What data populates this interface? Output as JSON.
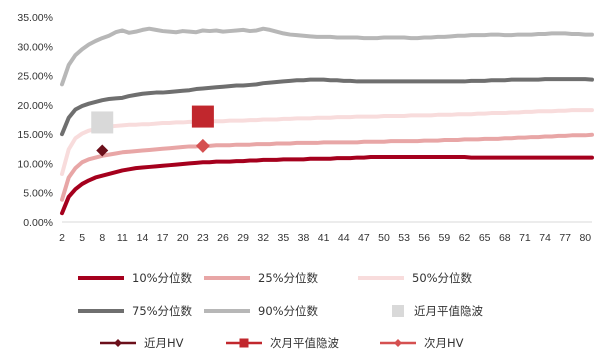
{
  "chart_data": {
    "type": "line",
    "x": [
      2,
      3,
      4,
      5,
      6,
      7,
      8,
      9,
      10,
      11,
      12,
      13,
      14,
      15,
      16,
      17,
      18,
      19,
      20,
      21,
      22,
      23,
      24,
      25,
      26,
      27,
      28,
      29,
      30,
      31,
      32,
      33,
      34,
      35,
      36,
      37,
      38,
      39,
      40,
      41,
      42,
      43,
      44,
      45,
      46,
      47,
      48,
      49,
      50,
      51,
      52,
      53,
      54,
      55,
      56,
      57,
      58,
      59,
      60,
      61,
      62,
      63,
      64,
      65,
      66,
      67,
      68,
      69,
      70,
      71,
      72,
      73,
      74,
      75,
      76,
      77,
      78,
      79,
      80,
      81
    ],
    "x_tick_labels": [
      "2",
      "5",
      "8",
      "11",
      "14",
      "17",
      "20",
      "23",
      "26",
      "29",
      "32",
      "35",
      "38",
      "41",
      "44",
      "47",
      "50",
      "53",
      "56",
      "59",
      "62",
      "65",
      "68",
      "71",
      "74",
      "77",
      "80"
    ],
    "ylim": [
      0,
      35
    ],
    "y_ticks": [
      0,
      5,
      10,
      15,
      20,
      25,
      30,
      35
    ],
    "y_tick_labels": [
      "0.00%",
      "5.00%",
      "10.00%",
      "15.00%",
      "20.00%",
      "25.00%",
      "30.00%",
      "35.00%"
    ],
    "series": [
      {
        "name": "10%分位数",
        "color": "#a5001d",
        "width": 4,
        "values": [
          1.5,
          4.3,
          5.6,
          6.5,
          7.1,
          7.6,
          7.9,
          8.2,
          8.5,
          8.8,
          9.0,
          9.2,
          9.3,
          9.4,
          9.5,
          9.6,
          9.7,
          9.8,
          9.9,
          10.0,
          10.1,
          10.2,
          10.2,
          10.3,
          10.3,
          10.3,
          10.4,
          10.4,
          10.5,
          10.5,
          10.6,
          10.6,
          10.6,
          10.7,
          10.7,
          10.7,
          10.7,
          10.8,
          10.8,
          10.8,
          10.8,
          10.9,
          10.9,
          10.9,
          11.0,
          11.0,
          11.1,
          11.1,
          11.1,
          11.1,
          11.1,
          11.1,
          11.1,
          11.1,
          11.1,
          11.1,
          11.1,
          11.1,
          11.1,
          11.1,
          11.1,
          11.0,
          11.0,
          11.0,
          11.0,
          11.0,
          11.0,
          11.0,
          11.0,
          11.0,
          11.0,
          11.0,
          11.0,
          11.0,
          11.0,
          11.0,
          11.0,
          11.0,
          11.0,
          11.0
        ]
      },
      {
        "name": "25%分位数",
        "color": "#e8a6a6",
        "width": 4,
        "values": [
          3.8,
          7.6,
          9.2,
          10.2,
          10.7,
          11.0,
          11.3,
          11.5,
          11.7,
          11.9,
          12.0,
          12.1,
          12.2,
          12.3,
          12.4,
          12.5,
          12.6,
          12.7,
          12.8,
          12.9,
          12.9,
          13.0,
          13.0,
          13.1,
          13.1,
          13.1,
          13.2,
          13.2,
          13.2,
          13.3,
          13.3,
          13.3,
          13.4,
          13.4,
          13.4,
          13.5,
          13.5,
          13.5,
          13.5,
          13.6,
          13.6,
          13.6,
          13.6,
          13.6,
          13.6,
          13.7,
          13.7,
          13.7,
          13.7,
          13.8,
          13.8,
          13.8,
          13.8,
          13.8,
          13.9,
          13.9,
          13.9,
          14.0,
          14.0,
          14.0,
          14.1,
          14.1,
          14.1,
          14.2,
          14.2,
          14.2,
          14.3,
          14.3,
          14.4,
          14.4,
          14.5,
          14.5,
          14.6,
          14.6,
          14.7,
          14.7,
          14.8,
          14.8,
          14.8,
          14.9
        ]
      },
      {
        "name": "50%分位数",
        "color": "#f8dcdc",
        "width": 4,
        "values": [
          8.2,
          12.4,
          14.3,
          15.1,
          15.6,
          15.9,
          16.1,
          16.3,
          16.4,
          16.5,
          16.6,
          16.6,
          16.7,
          16.7,
          16.8,
          16.9,
          16.9,
          17.0,
          17.0,
          17.1,
          17.1,
          17.1,
          17.2,
          17.2,
          17.2,
          17.3,
          17.3,
          17.3,
          17.4,
          17.4,
          17.5,
          17.5,
          17.5,
          17.6,
          17.6,
          17.7,
          17.7,
          17.7,
          17.8,
          17.8,
          17.8,
          17.9,
          17.9,
          17.9,
          18.0,
          18.0,
          18.0,
          18.0,
          18.1,
          18.1,
          18.1,
          18.1,
          18.2,
          18.2,
          18.2,
          18.2,
          18.3,
          18.3,
          18.3,
          18.4,
          18.4,
          18.4,
          18.5,
          18.5,
          18.6,
          18.6,
          18.6,
          18.7,
          18.7,
          18.8,
          18.8,
          18.9,
          18.9,
          18.9,
          19.0,
          19.0,
          19.1,
          19.1,
          19.1,
          19.1
        ]
      },
      {
        "name": "75%分位数",
        "color": "#6f6f6f",
        "width": 4,
        "values": [
          15.0,
          17.8,
          19.2,
          19.8,
          20.2,
          20.5,
          20.8,
          21.0,
          21.1,
          21.2,
          21.5,
          21.7,
          21.9,
          22.0,
          22.1,
          22.1,
          22.2,
          22.3,
          22.4,
          22.5,
          22.7,
          22.8,
          22.9,
          23.0,
          23.1,
          23.2,
          23.3,
          23.3,
          23.4,
          23.5,
          23.7,
          23.8,
          23.9,
          24.0,
          24.1,
          24.2,
          24.2,
          24.3,
          24.3,
          24.3,
          24.2,
          24.2,
          24.1,
          24.1,
          24.0,
          24.0,
          24.0,
          24.0,
          24.0,
          24.0,
          24.0,
          24.0,
          24.0,
          24.0,
          24.0,
          24.0,
          24.0,
          24.0,
          24.0,
          24.0,
          24.0,
          24.1,
          24.1,
          24.1,
          24.2,
          24.2,
          24.2,
          24.3,
          24.3,
          24.3,
          24.3,
          24.3,
          24.4,
          24.4,
          24.4,
          24.4,
          24.4,
          24.4,
          24.4,
          24.3
        ]
      },
      {
        "name": "90%分位数",
        "color": "#b7b7b7",
        "width": 4,
        "values": [
          23.5,
          26.8,
          28.5,
          29.5,
          30.3,
          30.9,
          31.4,
          31.8,
          32.4,
          32.7,
          32.3,
          32.5,
          32.8,
          33.0,
          32.8,
          32.6,
          32.5,
          32.4,
          32.6,
          32.5,
          32.4,
          32.7,
          32.6,
          32.7,
          32.5,
          32.6,
          32.7,
          32.8,
          32.6,
          32.7,
          33.0,
          32.8,
          32.5,
          32.2,
          32.0,
          31.9,
          31.8,
          31.7,
          31.6,
          31.6,
          31.6,
          31.5,
          31.5,
          31.5,
          31.5,
          31.4,
          31.4,
          31.4,
          31.5,
          31.5,
          31.5,
          31.5,
          31.4,
          31.4,
          31.5,
          31.5,
          31.6,
          31.6,
          31.7,
          31.8,
          31.8,
          31.9,
          31.9,
          31.9,
          32.0,
          32.0,
          31.9,
          31.9,
          32.0,
          32.0,
          32.0,
          32.1,
          32.1,
          32.2,
          32.2,
          32.2,
          32.1,
          32.1,
          32.0,
          32.0
        ]
      }
    ],
    "points": [
      {
        "name": "近月平值隐波",
        "x": 8,
        "y": 17.0,
        "color": "#d9d9d9",
        "marker": "square",
        "size": 22
      },
      {
        "name": "近月HV",
        "x": 8,
        "y": 12.2,
        "color": "#6b0f1a",
        "marker": "diamond",
        "size": 12
      },
      {
        "name": "次月平值隐波",
        "x": 23,
        "y": 18.0,
        "color": "#c1272d",
        "marker": "square",
        "size": 22
      },
      {
        "name": "次月HV",
        "x": 23,
        "y": 13.0,
        "color": "#d55050",
        "marker": "diamond",
        "size": 14
      }
    ],
    "legend": [
      {
        "label": "10%分位数",
        "type": "line",
        "color": "#a5001d"
      },
      {
        "label": "25%分位数",
        "type": "line",
        "color": "#e8a6a6"
      },
      {
        "label": "50%分位数",
        "type": "line",
        "color": "#f8dcdc"
      },
      {
        "label": "75%分位数",
        "type": "line",
        "color": "#6f6f6f"
      },
      {
        "label": "90%分位数",
        "type": "line",
        "color": "#b7b7b7"
      },
      {
        "label": "近月平值隐波",
        "type": "square",
        "color": "#d9d9d9"
      },
      {
        "label": "近月HV",
        "type": "line-diamond",
        "color": "#6b0f1a"
      },
      {
        "label": "次月平值隐波",
        "type": "line-square",
        "color": "#c1272d"
      },
      {
        "label": "次月HV",
        "type": "line-diamond",
        "color": "#d55050"
      }
    ],
    "legend_position": "bottom",
    "grid": false,
    "title": "",
    "xlabel": "",
    "ylabel": ""
  }
}
